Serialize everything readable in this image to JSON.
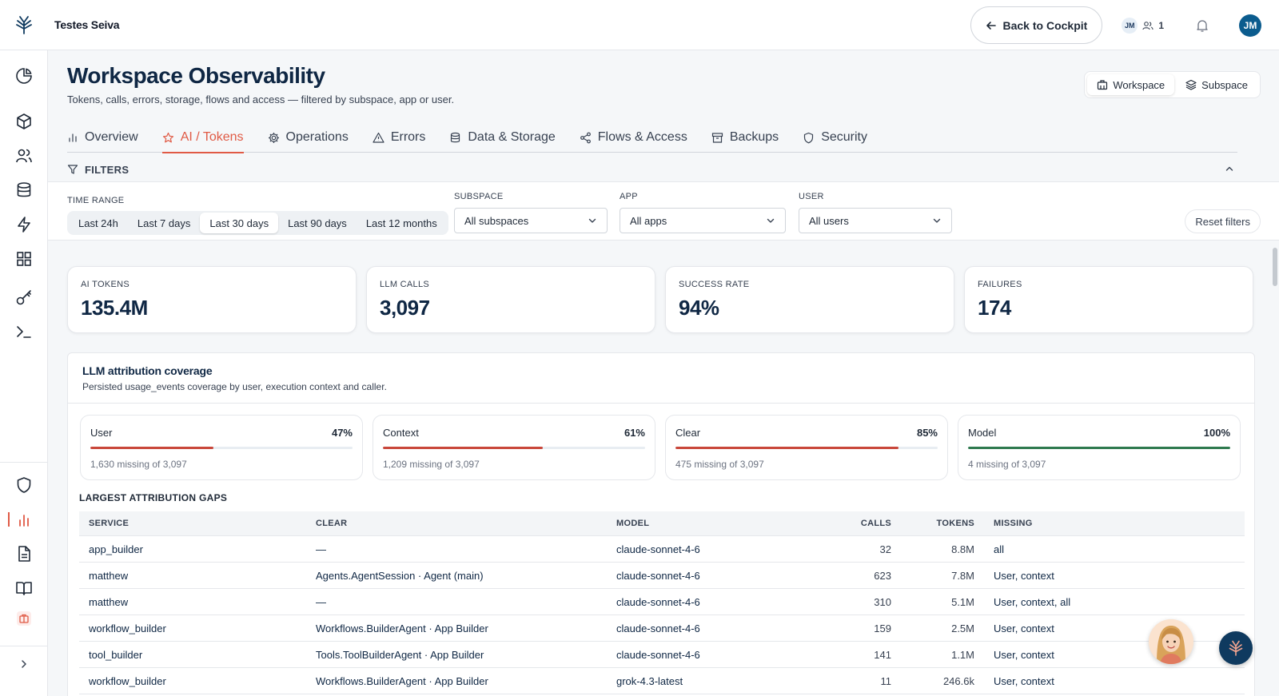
{
  "header": {
    "workspace_name": "Testes Seiva",
    "back_label": "Back to Cockpit",
    "presence_initials": "JM",
    "presence_count": "1",
    "user_initials": "JM"
  },
  "sidebar": {
    "items": [
      "dashboard-icon",
      "cube-icon",
      "users-icon",
      "database-icon",
      "bolt-icon",
      "grid-icon",
      "key-icon",
      "terminal-icon",
      "shield-icon",
      "bar-chart-icon",
      "document-icon",
      "book-icon",
      "briefcase-icon"
    ],
    "active": "bar-chart-icon"
  },
  "page": {
    "title": "Workspace Observability",
    "subtitle": "Tokens, calls, errors, storage, flows and access — filtered by subspace, app or user."
  },
  "scope": {
    "workspace": "Workspace",
    "subspace": "Subspace",
    "active": "Workspace"
  },
  "tabs": [
    {
      "label": "Overview",
      "icon": "bar-chart-icon"
    },
    {
      "label": "AI / Tokens",
      "icon": "star-icon",
      "active": true
    },
    {
      "label": "Operations",
      "icon": "gear-icon"
    },
    {
      "label": "Errors",
      "icon": "warning-icon"
    },
    {
      "label": "Data & Storage",
      "icon": "database-icon"
    },
    {
      "label": "Flows & Access",
      "icon": "share-icon"
    },
    {
      "label": "Backups",
      "icon": "archive-icon"
    },
    {
      "label": "Security",
      "icon": "shield-icon"
    }
  ],
  "filters": {
    "heading": "FILTERS",
    "time_range_label": "TIME RANGE",
    "time_ranges": [
      "Last 24h",
      "Last 7 days",
      "Last 30 days",
      "Last 90 days",
      "Last 12 months"
    ],
    "time_range_selected": "Last 30 days",
    "subspace_label": "SUBSPACE",
    "subspace_value": "All subspaces",
    "app_label": "APP",
    "app_value": "All apps",
    "user_label": "USER",
    "user_value": "All users",
    "reset_label": "Reset filters"
  },
  "kpis": [
    {
      "label": "AI TOKENS",
      "value": "135.4M"
    },
    {
      "label": "LLM CALLS",
      "value": "3,097"
    },
    {
      "label": "SUCCESS RATE",
      "value": "94%"
    },
    {
      "label": "FAILURES",
      "value": "174"
    }
  ],
  "coverage": {
    "title": "LLM attribution coverage",
    "subtitle": "Persisted usage_events coverage by user, execution context and caller.",
    "items": [
      {
        "name": "User",
        "pct_label": "47%",
        "pct": 0.47,
        "missing": "1,630 missing of 3,097",
        "color": "#c9473b"
      },
      {
        "name": "Context",
        "pct_label": "61%",
        "pct": 0.61,
        "missing": "1,209 missing of 3,097",
        "color": "#c9473b"
      },
      {
        "name": "Clear",
        "pct_label": "85%",
        "pct": 0.85,
        "missing": "475 missing of 3,097",
        "color": "#c9473b"
      },
      {
        "name": "Model",
        "pct_label": "100%",
        "pct": 1.0,
        "missing": "4 missing of 3,097",
        "color": "#2f7a4f"
      }
    ]
  },
  "gaps": {
    "title": "LARGEST ATTRIBUTION GAPS",
    "columns": [
      "SERVICE",
      "CLEAR",
      "MODEL",
      "CALLS",
      "TOKENS",
      "MISSING"
    ],
    "rows": [
      {
        "service": "app_builder",
        "clear": "—",
        "model": "claude-sonnet-4-6",
        "calls": "32",
        "tokens": "8.8M",
        "missing": "all"
      },
      {
        "service": "matthew",
        "clear": "Agents.AgentSession · Agent (main)",
        "model": "claude-sonnet-4-6",
        "calls": "623",
        "tokens": "7.8M",
        "missing": "User, context"
      },
      {
        "service": "matthew",
        "clear": "—",
        "model": "claude-sonnet-4-6",
        "calls": "310",
        "tokens": "5.1M",
        "missing": "User, context, all"
      },
      {
        "service": "workflow_builder",
        "clear": "Workflows.BuilderAgent · App Builder",
        "model": "claude-sonnet-4-6",
        "calls": "159",
        "tokens": "2.5M",
        "missing": "User, context"
      },
      {
        "service": "tool_builder",
        "clear": "Tools.ToolBuilderAgent · App Builder",
        "model": "claude-sonnet-4-6",
        "calls": "141",
        "tokens": "1.1M",
        "missing": "User, context"
      },
      {
        "service": "workflow_builder",
        "clear": "Workflows.BuilderAgent · App Builder",
        "model": "grok-4.3-latest",
        "calls": "11",
        "tokens": "246.6k",
        "missing": "User, context"
      }
    ]
  },
  "colors": {
    "accent": "#e05a45",
    "navy": "#0f2744",
    "brand": "#0b5c8e"
  }
}
